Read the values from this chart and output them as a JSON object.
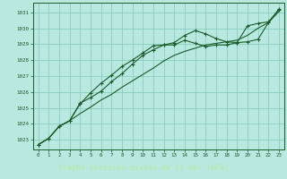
{
  "title": "Graphe pression niveau de la mer (hPa)",
  "bg_color": "#4db8a0",
  "plot_bg_color": "#b8e8e0",
  "grid_color": "#80c8b8",
  "line_color": "#1a5c28",
  "label_bg": "#2d7a40",
  "label_fg": "#b8e8b0",
  "xlim": [
    -0.5,
    23.5
  ],
  "ylim": [
    1022.4,
    1031.6
  ],
  "xticks": [
    0,
    1,
    2,
    3,
    4,
    5,
    6,
    7,
    8,
    9,
    10,
    11,
    12,
    13,
    14,
    15,
    16,
    17,
    18,
    19,
    20,
    21,
    22,
    23
  ],
  "yticks": [
    1023,
    1024,
    1025,
    1026,
    1027,
    1028,
    1029,
    1030,
    1031
  ],
  "series_smooth": [
    1022.7,
    1023.1,
    1023.85,
    1024.2,
    1024.65,
    1025.05,
    1025.5,
    1025.85,
    1026.3,
    1026.7,
    1027.1,
    1027.5,
    1027.95,
    1028.3,
    1028.55,
    1028.75,
    1028.95,
    1029.05,
    1029.15,
    1029.25,
    1029.55,
    1030.0,
    1030.35,
    1031.05
  ],
  "series_upper": [
    1022.7,
    1023.1,
    1023.85,
    1024.2,
    1025.3,
    1025.65,
    1026.05,
    1026.65,
    1027.15,
    1027.75,
    1028.3,
    1028.65,
    1028.95,
    1029.1,
    1029.55,
    1029.85,
    1029.65,
    1029.35,
    1029.15,
    1029.1,
    1029.15,
    1029.3,
    1030.35,
    1031.2
  ],
  "series_lower": [
    1022.7,
    1023.1,
    1023.85,
    1024.2,
    1025.25,
    1025.95,
    1026.55,
    1027.05,
    1027.6,
    1028.0,
    1028.45,
    1028.9,
    1028.95,
    1028.95,
    1029.25,
    1029.05,
    1028.85,
    1028.95,
    1028.95,
    1029.1,
    1030.15,
    1030.3,
    1030.4,
    1031.15
  ]
}
